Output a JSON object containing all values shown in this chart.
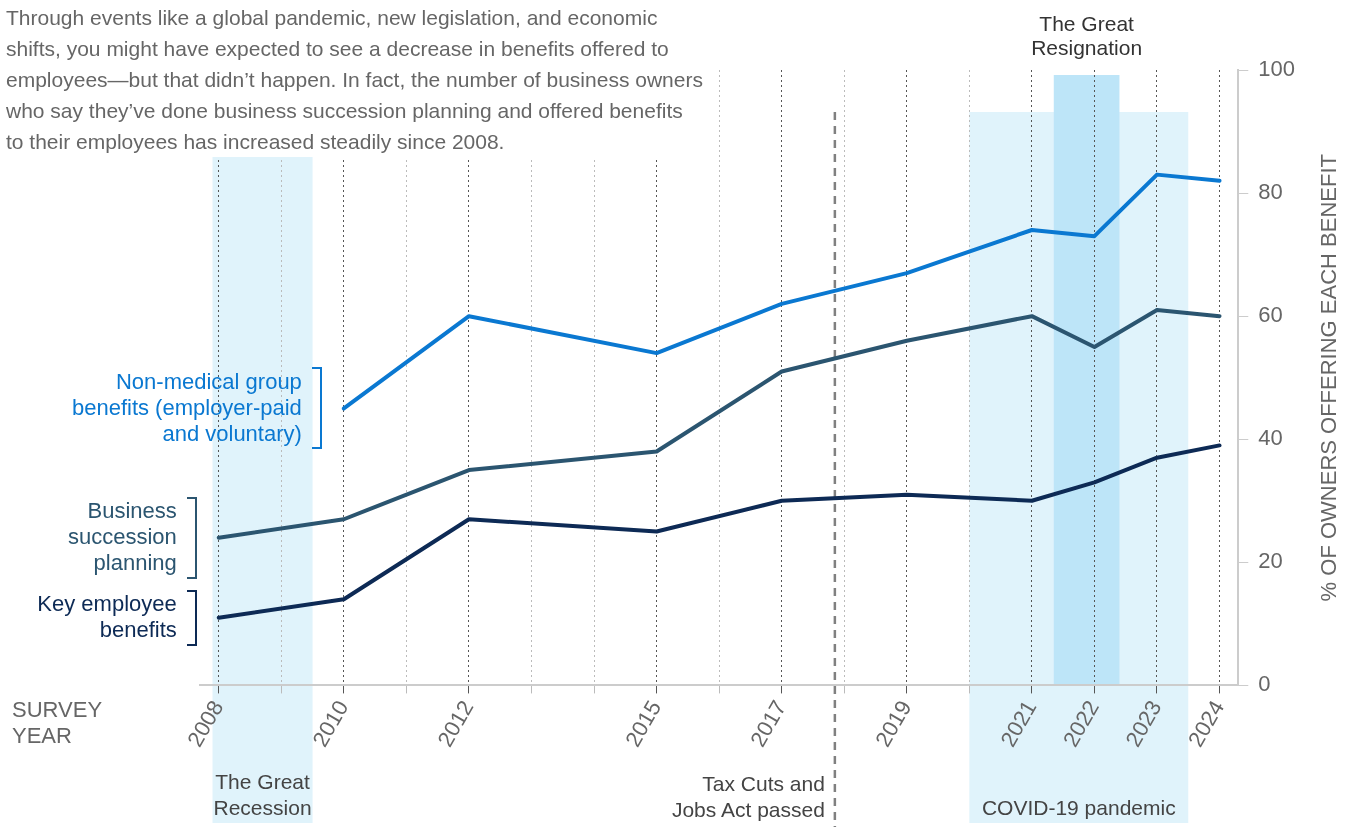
{
  "chart_data": {
    "type": "line",
    "subtitle": "Through events like a global pandemic, new legislation, and economic shifts, you might have expected to see a decrease in benefits offered to employees—but that didn’t happen. In fact, the number of business owners who say they’ve done business succession planning and offered benefits to their employees has increased steadily since 2008.",
    "xlabel": "SURVEY YEAR",
    "ylabel": "% OF OWNERS OFFERING EACH BENEFIT",
    "x": [
      2008,
      2010,
      2012,
      2015,
      2017,
      2019,
      2021,
      2022,
      2023,
      2024
    ],
    "series": [
      {
        "name": "Non-medical group benefits (employer-paid and voluntary)",
        "color": "#0a78d1",
        "values": [
          null,
          45,
          60,
          54,
          62,
          67,
          74,
          73,
          83,
          82
        ]
      },
      {
        "name": "Business succession planning",
        "color": "#2b5570",
        "values": [
          24,
          27,
          35,
          38,
          51,
          56,
          60,
          55,
          61,
          60
        ]
      },
      {
        "name": "Key employee benefits",
        "color": "#0d2a55",
        "values": [
          11,
          14,
          27,
          25,
          30,
          31,
          30,
          33,
          37,
          39
        ]
      }
    ],
    "xlim": [
      2007.7,
      2024.3
    ],
    "xticks": [
      2008,
      {
        "value": 2009,
        "label": null
      },
      2010,
      {
        "value": 2011,
        "label": null
      },
      2012,
      {
        "value": 2013,
        "label": null
      },
      {
        "value": 2014,
        "label": null
      },
      2015,
      {
        "value": 2016,
        "label": null
      },
      2017,
      {
        "value": 2018,
        "label": null
      },
      2019,
      {
        "value": 2020,
        "label": null
      },
      2021,
      2022,
      2023,
      2024
    ],
    "ylim": [
      0,
      100
    ],
    "yticks": [
      0,
      20,
      40,
      60,
      80,
      100
    ],
    "grid": "x",
    "legend": "left",
    "bands": [
      {
        "axis": "x",
        "from": 2007.9,
        "to": 2009.5,
        "label": "The Great Recession",
        "color": "#e0f3fb"
      },
      {
        "axis": "x",
        "from": 2020.0,
        "to": 2023.5,
        "label": "COVID-19 pandemic",
        "color": "#e0f3fb"
      },
      {
        "axis": "x",
        "from": 2021.35,
        "to": 2022.4,
        "label": "The Great Resignation",
        "color": "#bde5f8"
      }
    ],
    "ref_lines": [
      {
        "axis": "x",
        "value": 2017.85,
        "label": "Tax Cuts and Jobs Act passed",
        "color": "#808080",
        "line_style": "dashed"
      }
    ]
  }
}
